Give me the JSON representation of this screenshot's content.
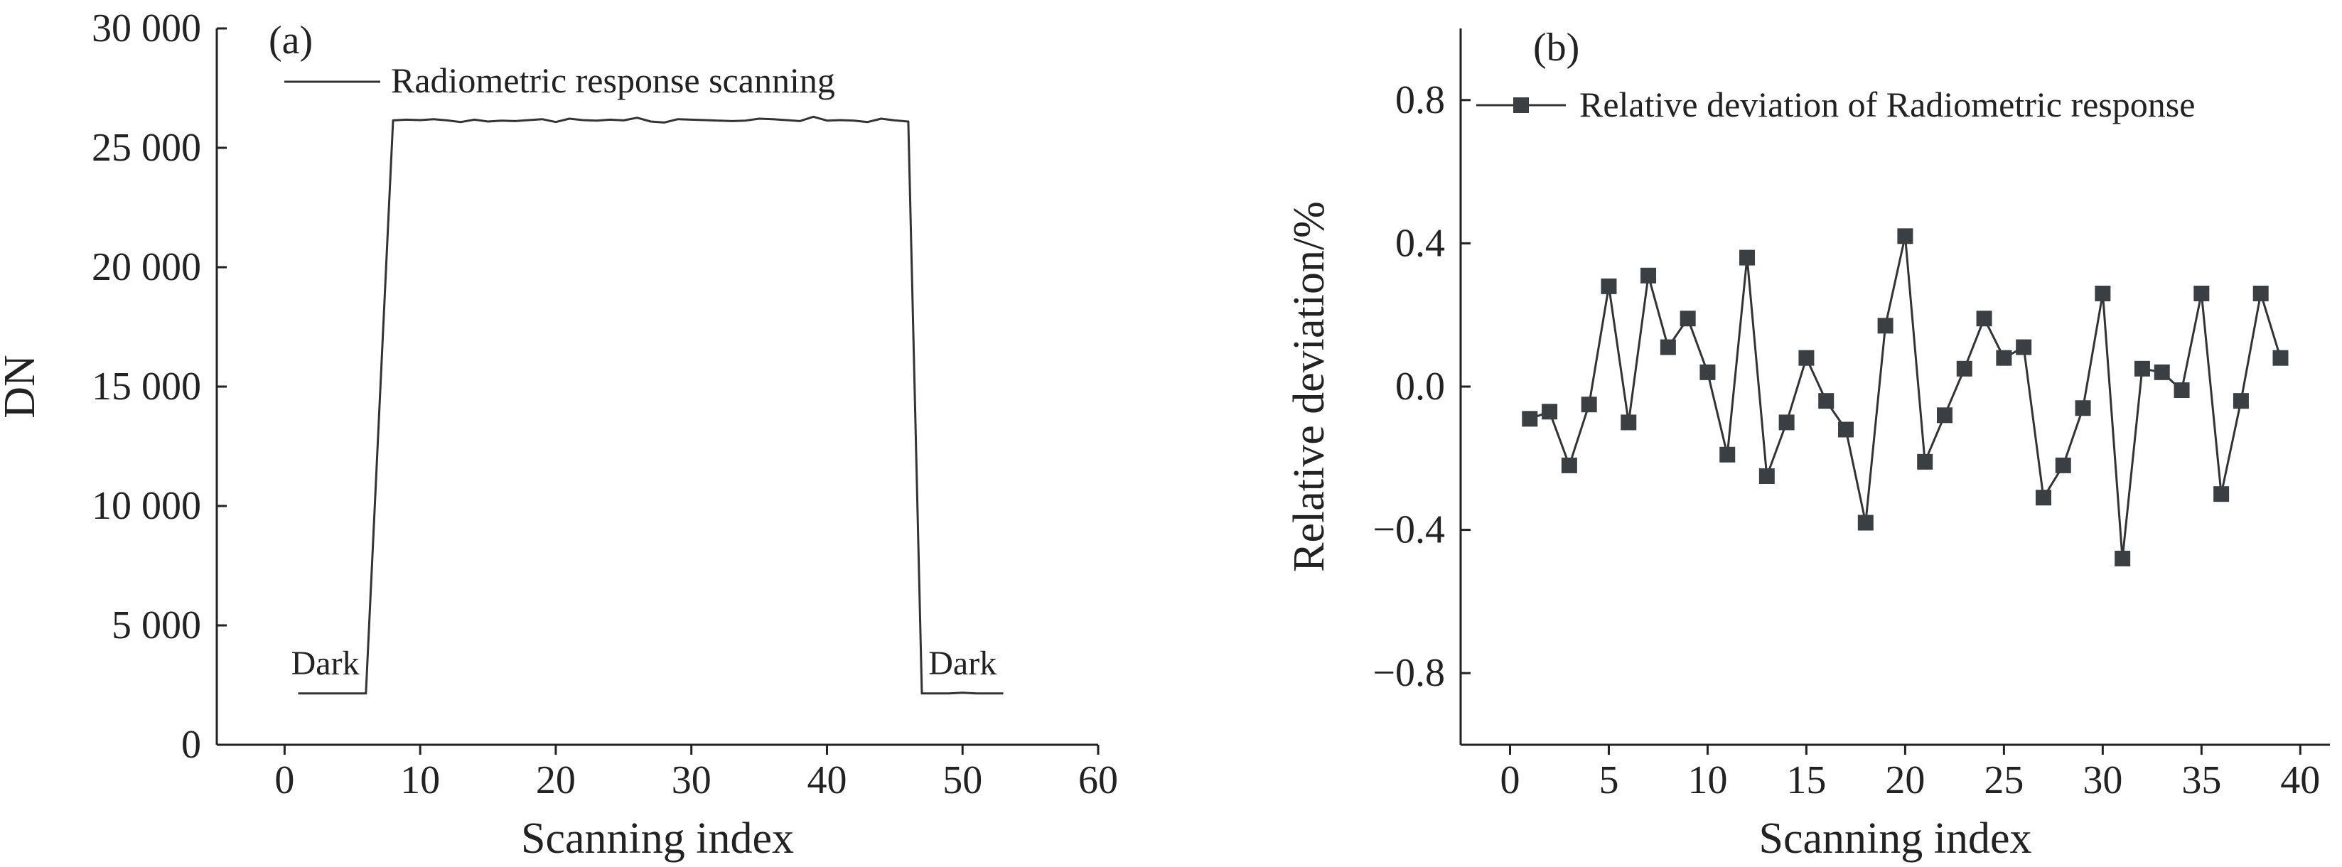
{
  "colors": {
    "line": "#333333",
    "marker": "#3a3f44",
    "axis": "#222222",
    "background": "#ffffff"
  },
  "chart_data": [
    {
      "type": "line",
      "panel_label": "(a)",
      "xlabel": "Scanning index",
      "ylabel": "DN",
      "xlim": [
        -5,
        60
      ],
      "ylim": [
        0,
        30000
      ],
      "x_ticks": [
        0,
        10,
        20,
        30,
        40,
        50,
        60
      ],
      "x_tick_labels": [
        "0",
        "10",
        "20",
        "30",
        "40",
        "50",
        "60"
      ],
      "y_ticks": [
        0,
        5000,
        10000,
        15000,
        20000,
        25000,
        30000
      ],
      "y_tick_labels": [
        "0",
        "5 000",
        "10 000",
        "15 000",
        "20 000",
        "25 000",
        "30 000"
      ],
      "legend": {
        "position": "top-left",
        "entries": [
          "Radiometric response scanning"
        ]
      },
      "annotations": [
        {
          "text": "Dark",
          "x": 3,
          "y": 2200
        },
        {
          "text": "Dark",
          "x": 50,
          "y": 2200
        }
      ],
      "series": [
        {
          "name": "Radiometric response scanning",
          "x": [
            1,
            2,
            3,
            4,
            5,
            6,
            8,
            9,
            10,
            11,
            12,
            13,
            14,
            15,
            16,
            17,
            18,
            19,
            20,
            21,
            22,
            23,
            24,
            25,
            26,
            27,
            28,
            29,
            30,
            31,
            32,
            33,
            34,
            35,
            36,
            37,
            38,
            39,
            40,
            41,
            42,
            43,
            44,
            45,
            46,
            47,
            48,
            49,
            50,
            51,
            52,
            53
          ],
          "values": [
            2150,
            2150,
            2150,
            2150,
            2150,
            2150,
            26150,
            26180,
            26160,
            26200,
            26150,
            26080,
            26180,
            26100,
            26140,
            26120,
            26160,
            26200,
            26080,
            26220,
            26160,
            26140,
            26180,
            26150,
            26260,
            26100,
            26060,
            26200,
            26180,
            26160,
            26140,
            26120,
            26140,
            26220,
            26200,
            26160,
            26120,
            26300,
            26140,
            26160,
            26140,
            26080,
            26220,
            26150,
            26100,
            2150,
            2150,
            2150,
            2180,
            2150,
            2150,
            2150
          ]
        }
      ]
    },
    {
      "type": "line",
      "panel_label": "(b)",
      "xlabel": "Scanning index",
      "ylabel": "Relative deviation/%",
      "xlim": [
        -2.5,
        41.5
      ],
      "ylim": [
        -1.0,
        1.0
      ],
      "x_ticks": [
        0,
        5,
        10,
        15,
        20,
        25,
        30,
        35,
        40
      ],
      "x_tick_labels": [
        "0",
        "5",
        "10",
        "15",
        "20",
        "25",
        "30",
        "35",
        "40"
      ],
      "y_ticks": [
        -0.8,
        -0.4,
        0.0,
        0.4,
        0.8
      ],
      "y_tick_labels": [
        "−0.8",
        "−0.4",
        "0.0",
        "0.4",
        "0.8"
      ],
      "legend": {
        "position": "top-left",
        "entries": [
          "Relative deviation of Radiometric response"
        ]
      },
      "series": [
        {
          "name": "Relative deviation of Radiometric response",
          "marker": "square",
          "x": [
            1,
            2,
            3,
            4,
            5,
            6,
            7,
            8,
            9,
            10,
            11,
            12,
            13,
            14,
            15,
            16,
            17,
            18,
            19,
            20,
            21,
            22,
            23,
            24,
            25,
            26,
            27,
            28,
            29,
            30,
            31,
            32,
            33,
            34,
            35,
            36,
            37,
            38,
            39
          ],
          "values": [
            -0.09,
            -0.07,
            -0.22,
            -0.05,
            0.28,
            -0.1,
            0.31,
            0.11,
            0.19,
            0.04,
            -0.19,
            0.36,
            -0.25,
            -0.1,
            0.08,
            -0.04,
            -0.12,
            -0.38,
            0.17,
            0.42,
            -0.21,
            -0.08,
            0.05,
            0.19,
            0.08,
            0.11,
            -0.31,
            -0.22,
            -0.06,
            0.26,
            -0.48,
            0.05,
            0.04,
            -0.01,
            0.26,
            -0.3,
            -0.04,
            0.26,
            0.08
          ]
        }
      ]
    }
  ]
}
